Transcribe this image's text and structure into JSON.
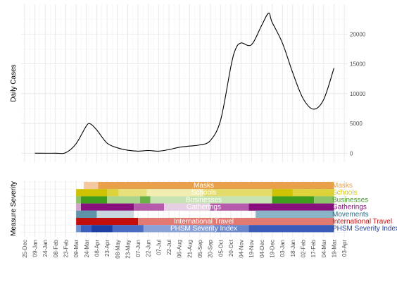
{
  "chart_data": [
    {
      "type": "line",
      "ylabel": "Daily Cases",
      "y_axis_side": "right",
      "ylim": [
        -1500,
        25000
      ],
      "yticks": [
        0,
        5000,
        10000,
        15000,
        20000
      ],
      "grid": true,
      "points": [
        {
          "x": "2020-01-09",
          "y": 0
        },
        {
          "x": "2020-02-08",
          "y": 0
        },
        {
          "x": "2020-02-23",
          "y": 100
        },
        {
          "x": "2020-03-09",
          "y": 1600
        },
        {
          "x": "2020-03-24",
          "y": 4600
        },
        {
          "x": "2020-03-30",
          "y": 4900
        },
        {
          "x": "2020-04-08",
          "y": 3900
        },
        {
          "x": "2020-04-23",
          "y": 1700
        },
        {
          "x": "2020-05-08",
          "y": 900
        },
        {
          "x": "2020-05-23",
          "y": 500
        },
        {
          "x": "2020-06-07",
          "y": 350
        },
        {
          "x": "2020-06-22",
          "y": 450
        },
        {
          "x": "2020-07-07",
          "y": 350
        },
        {
          "x": "2020-07-22",
          "y": 600
        },
        {
          "x": "2020-08-06",
          "y": 1000
        },
        {
          "x": "2020-08-21",
          "y": 1200
        },
        {
          "x": "2020-09-05",
          "y": 1400
        },
        {
          "x": "2020-09-20",
          "y": 2100
        },
        {
          "x": "2020-10-05",
          "y": 5500
        },
        {
          "x": "2020-10-20",
          "y": 14500
        },
        {
          "x": "2020-10-27",
          "y": 17500
        },
        {
          "x": "2020-11-04",
          "y": 18500
        },
        {
          "x": "2020-11-19",
          "y": 18200
        },
        {
          "x": "2020-12-04",
          "y": 21500
        },
        {
          "x": "2020-12-14",
          "y": 23500
        },
        {
          "x": "2020-12-19",
          "y": 22000
        },
        {
          "x": "2021-01-03",
          "y": 18500
        },
        {
          "x": "2021-01-18",
          "y": 13500
        },
        {
          "x": "2021-02-02",
          "y": 9200
        },
        {
          "x": "2021-02-17",
          "y": 7400
        },
        {
          "x": "2021-03-04",
          "y": 9000
        },
        {
          "x": "2021-03-19",
          "y": 14300
        }
      ]
    },
    {
      "type": "heatmap",
      "ylabel": "Measure Severity",
      "x_type": "date",
      "xlim": [
        "2019-12-20",
        "2021-04-08"
      ],
      "xticks": [
        "25-Dec",
        "09-Jan",
        "24-Jan",
        "08-Feb",
        "23-Feb",
        "09-Mar",
        "24-Mar",
        "08-Apr",
        "23-Apr",
        "08-May",
        "23-May",
        "07-Jun",
        "22-Jun",
        "07-Jul",
        "22-Jul",
        "06-Aug",
        "21-Aug",
        "05-Sep",
        "20-Sep",
        "05-Oct",
        "20-Oct",
        "04-Nov",
        "19-Nov",
        "04-Dec",
        "19-Dec",
        "03-Jan",
        "18-Jan",
        "02-Feb",
        "17-Feb",
        "04-Mar",
        "19-Mar",
        "03-Apr"
      ],
      "xtick_dates": [
        "2019-12-25",
        "2020-01-09",
        "2020-01-24",
        "2020-02-08",
        "2020-02-23",
        "2020-03-09",
        "2020-03-24",
        "2020-04-08",
        "2020-04-23",
        "2020-05-08",
        "2020-05-23",
        "2020-06-07",
        "2020-06-22",
        "2020-07-07",
        "2020-07-22",
        "2020-08-06",
        "2020-08-21",
        "2020-09-05",
        "2020-09-20",
        "2020-10-05",
        "2020-10-20",
        "2020-11-04",
        "2020-11-19",
        "2020-12-04",
        "2020-12-19",
        "2021-01-03",
        "2021-01-18",
        "2021-02-02",
        "2021-02-17",
        "2021-03-04",
        "2021-03-19",
        "2021-04-03"
      ],
      "rows": [
        {
          "name": "Masks",
          "label_color": "#e8a04a",
          "segments": [
            {
              "start": "2020-03-20",
              "end": "2020-04-10",
              "color": "#f4c9a0"
            },
            {
              "start": "2020-04-10",
              "end": "2021-03-19",
              "color": "#e8a04a"
            }
          ]
        },
        {
          "name": "Schools",
          "label_color": "#d9cc00",
          "segments": [
            {
              "start": "2020-03-09",
              "end": "2020-04-23",
              "color": "#cfc200"
            },
            {
              "start": "2020-04-23",
              "end": "2020-05-10",
              "color": "#ddd23a"
            },
            {
              "start": "2020-05-10",
              "end": "2020-06-20",
              "color": "#e8e07a"
            },
            {
              "start": "2020-06-20",
              "end": "2020-09-10",
              "color": "#f1edb0"
            },
            {
              "start": "2020-09-10",
              "end": "2020-12-19",
              "color": "#e3dc6a"
            },
            {
              "start": "2020-12-19",
              "end": "2021-01-18",
              "color": "#cfc200"
            },
            {
              "start": "2021-01-18",
              "end": "2021-03-19",
              "color": "#ddd23a"
            }
          ]
        },
        {
          "name": "Businesses",
          "label_color": "#3f9d1e",
          "segments": [
            {
              "start": "2020-03-09",
              "end": "2020-03-16",
              "color": "#8cc46a"
            },
            {
              "start": "2020-03-16",
              "end": "2020-04-23",
              "color": "#3f9d1e"
            },
            {
              "start": "2020-04-23",
              "end": "2020-06-10",
              "color": "#a8d48c"
            },
            {
              "start": "2020-06-10",
              "end": "2020-06-25",
              "color": "#6bb14a"
            },
            {
              "start": "2020-06-25",
              "end": "2020-12-19",
              "color": "#c7e3b3"
            },
            {
              "start": "2020-12-19",
              "end": "2021-02-18",
              "color": "#3f9d1e"
            },
            {
              "start": "2021-02-18",
              "end": "2021-03-19",
              "color": "#8cc46a"
            }
          ]
        },
        {
          "name": "Gatherings",
          "label_color": "#8a0f7e",
          "segments": [
            {
              "start": "2020-03-09",
              "end": "2020-03-16",
              "color": "#d4a0cc"
            },
            {
              "start": "2020-03-16",
              "end": "2020-06-01",
              "color": "#8a0f7e"
            },
            {
              "start": "2020-06-01",
              "end": "2020-07-15",
              "color": "#b65aab"
            },
            {
              "start": "2020-07-15",
              "end": "2020-09-20",
              "color": "#e6cfe2"
            },
            {
              "start": "2020-09-20",
              "end": "2020-11-15",
              "color": "#b65aab"
            },
            {
              "start": "2020-11-15",
              "end": "2021-03-19",
              "color": "#8a0f7e"
            }
          ]
        },
        {
          "name": "Movements",
          "label_color": "#1f6f8b",
          "segments": [
            {
              "start": "2020-03-09",
              "end": "2020-04-08",
              "color": "#5f93a9"
            },
            {
              "start": "2020-04-08",
              "end": "2020-06-01",
              "color": "#c8d6dd"
            },
            {
              "start": "2020-11-25",
              "end": "2021-03-19",
              "color": "#8ab4c8"
            }
          ]
        },
        {
          "name": "International Travel",
          "label_color": "#c40e0e",
          "segments": [
            {
              "start": "2020-03-09",
              "end": "2020-06-07",
              "color": "#c40e0e"
            },
            {
              "start": "2020-06-07",
              "end": "2021-03-19",
              "color": "#e27a74"
            }
          ]
        },
        {
          "name": "PHSM Severity Index",
          "label_color": "#1d3fa3",
          "segments": [
            {
              "start": "2020-03-09",
              "end": "2020-03-16",
              "color": "#6f8fcf"
            },
            {
              "start": "2020-03-16",
              "end": "2020-03-31",
              "color": "#3b5fbf"
            },
            {
              "start": "2020-03-31",
              "end": "2020-05-01",
              "color": "#1d3fa3"
            },
            {
              "start": "2020-05-01",
              "end": "2020-06-15",
              "color": "#4a6bc2"
            },
            {
              "start": "2020-06-15",
              "end": "2020-09-25",
              "color": "#8aa2d8"
            },
            {
              "start": "2020-09-25",
              "end": "2020-11-15",
              "color": "#6a87cc"
            },
            {
              "start": "2020-11-15",
              "end": "2021-03-19",
              "color": "#3a5cb8"
            }
          ]
        }
      ]
    }
  ]
}
